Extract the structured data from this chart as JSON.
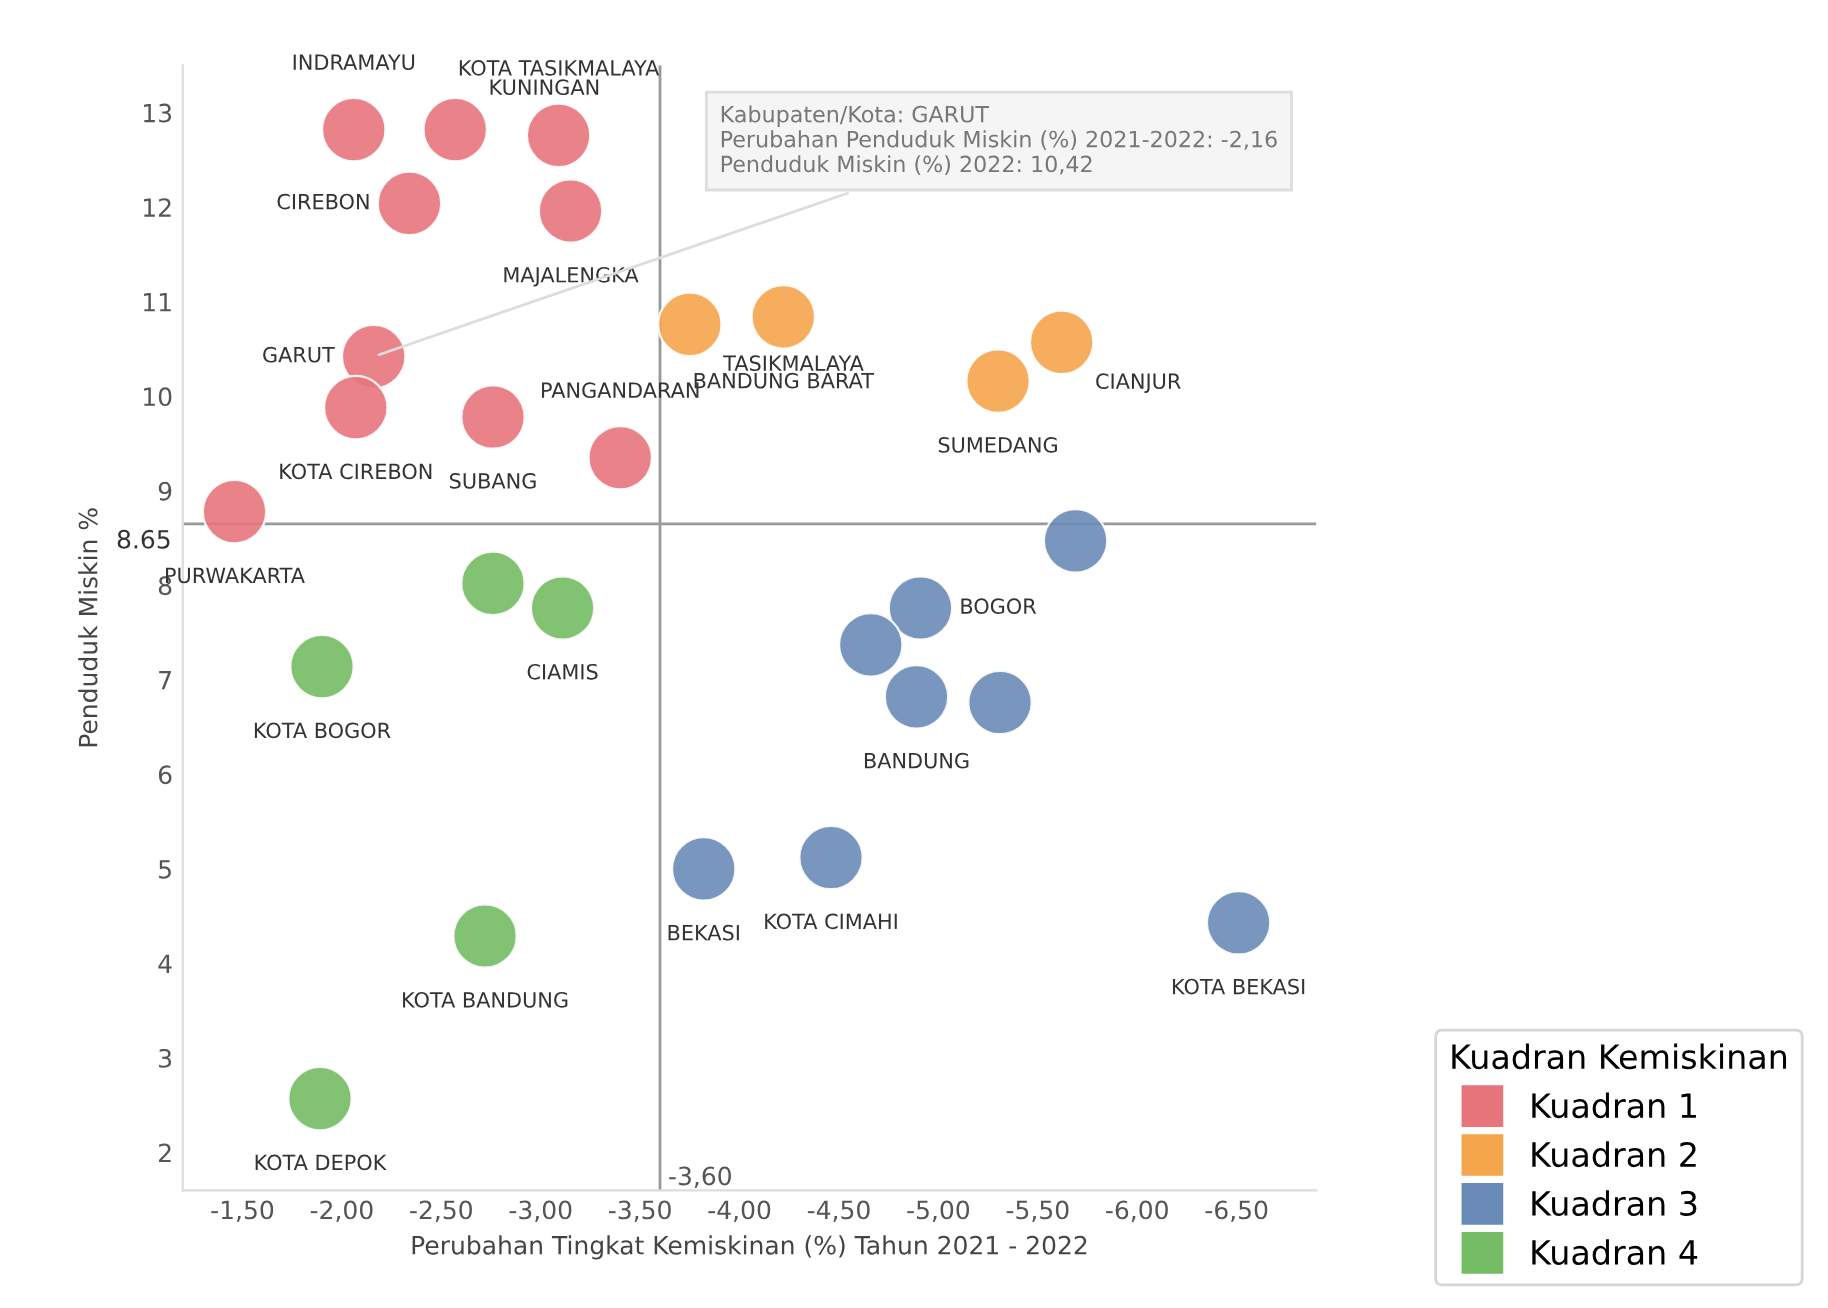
{
  "chart_data": {
    "type": "scatter",
    "xlabel": "Perubahan Tingkat Kemiskinan (%) Tahun 2021 - 2022",
    "ylabel": "Penduduk Miskin %",
    "legend_title": "Kuadran Kemiskinan",
    "legend": "bottom right",
    "marker": "circle",
    "grid": false,
    "xlim": [
      -1.2,
      -6.9
    ],
    "ylim": [
      1.6,
      13.5
    ],
    "xticks": [
      {
        "value": -1.5,
        "label": "-1,50"
      },
      {
        "value": -2.0,
        "label": "-2,00"
      },
      {
        "value": -2.5,
        "label": "-2,50"
      },
      {
        "value": -3.0,
        "label": "-3,00"
      },
      {
        "value": -3.5,
        "label": "-3,50"
      },
      {
        "value": -4.0,
        "label": "-4,00"
      },
      {
        "value": -4.5,
        "label": "-4,50"
      },
      {
        "value": -5.0,
        "label": "-5,00"
      },
      {
        "value": -5.5,
        "label": "-5,50"
      },
      {
        "value": -6.0,
        "label": "-6,00"
      },
      {
        "value": -6.5,
        "label": "-6,50"
      }
    ],
    "yticks": [
      2,
      3,
      4,
      5,
      6,
      7,
      8,
      9,
      10,
      11,
      12,
      13
    ],
    "ref_lines": [
      {
        "axis": "y",
        "value": 8.65,
        "label": "8.65",
        "color": "#999999"
      },
      {
        "axis": "x",
        "value": -3.6,
        "label": "-3,60",
        "color": "#999999"
      }
    ],
    "series": [
      {
        "name": "Kuadran 1",
        "color": "#e8747c",
        "x": [
          -2.06,
          -2.57,
          -3.09,
          -2.34,
          -3.15,
          -2.16,
          -2.07,
          -2.76,
          -3.4,
          -1.46
        ],
        "values": [
          12.82,
          12.82,
          12.76,
          12.04,
          11.96,
          10.42,
          9.88,
          9.78,
          9.35,
          8.78
        ],
        "value_labels": [
          "INDRAMAYU",
          "KUNINGAN",
          "KOTA TASIKMALAYA",
          "CIREBON",
          "MAJALENGKA",
          "GARUT",
          "KOTA CIREBON",
          "SUBANG",
          "PANGANDARAN",
          "PURWAKARTA"
        ]
      },
      {
        "name": "Kuadran 2",
        "color": "#f5a54c",
        "x": [
          -3.75,
          -4.22,
          -5.62,
          -5.3
        ],
        "values": [
          10.76,
          10.84,
          10.57,
          10.16
        ],
        "value_labels": [
          "TASIKMALAYA",
          "BANDUNG BARAT",
          "CIANJUR",
          "SUMEDANG"
        ]
      },
      {
        "name": "Kuadran 3",
        "color": "#6a8bb8",
        "x": [
          -5.69,
          -4.91,
          -4.66,
          -4.89,
          -5.31,
          -4.46,
          -3.82,
          -6.51
        ],
        "values": [
          8.47,
          7.76,
          7.37,
          6.82,
          6.76,
          5.12,
          5.0,
          4.43
        ],
        "value_labels": [
          null,
          "BOGOR",
          null,
          "BANDUNG",
          null,
          "KOTA CIMAHI",
          "BEKASI",
          "KOTA BEKASI"
        ]
      },
      {
        "name": "Kuadran 4",
        "color": "#74bd64",
        "x": [
          -2.76,
          -3.11,
          -1.9,
          -2.72,
          -1.89
        ],
        "values": [
          8.02,
          7.76,
          7.14,
          4.29,
          2.57
        ],
        "value_labels": [
          null,
          "CIAMIS",
          "KOTA BOGOR",
          "KOTA BANDUNG",
          "KOTA DEPOK"
        ]
      }
    ],
    "annotations": [
      {
        "text": "Kabupaten/Kota: GARUT\nPerubahan Penduduk Miskin (%) 2021-2022: -2,16\nPenduduk Miskin (%) 2022: 10,42",
        "x": -2.16,
        "y": 10.42
      }
    ]
  }
}
